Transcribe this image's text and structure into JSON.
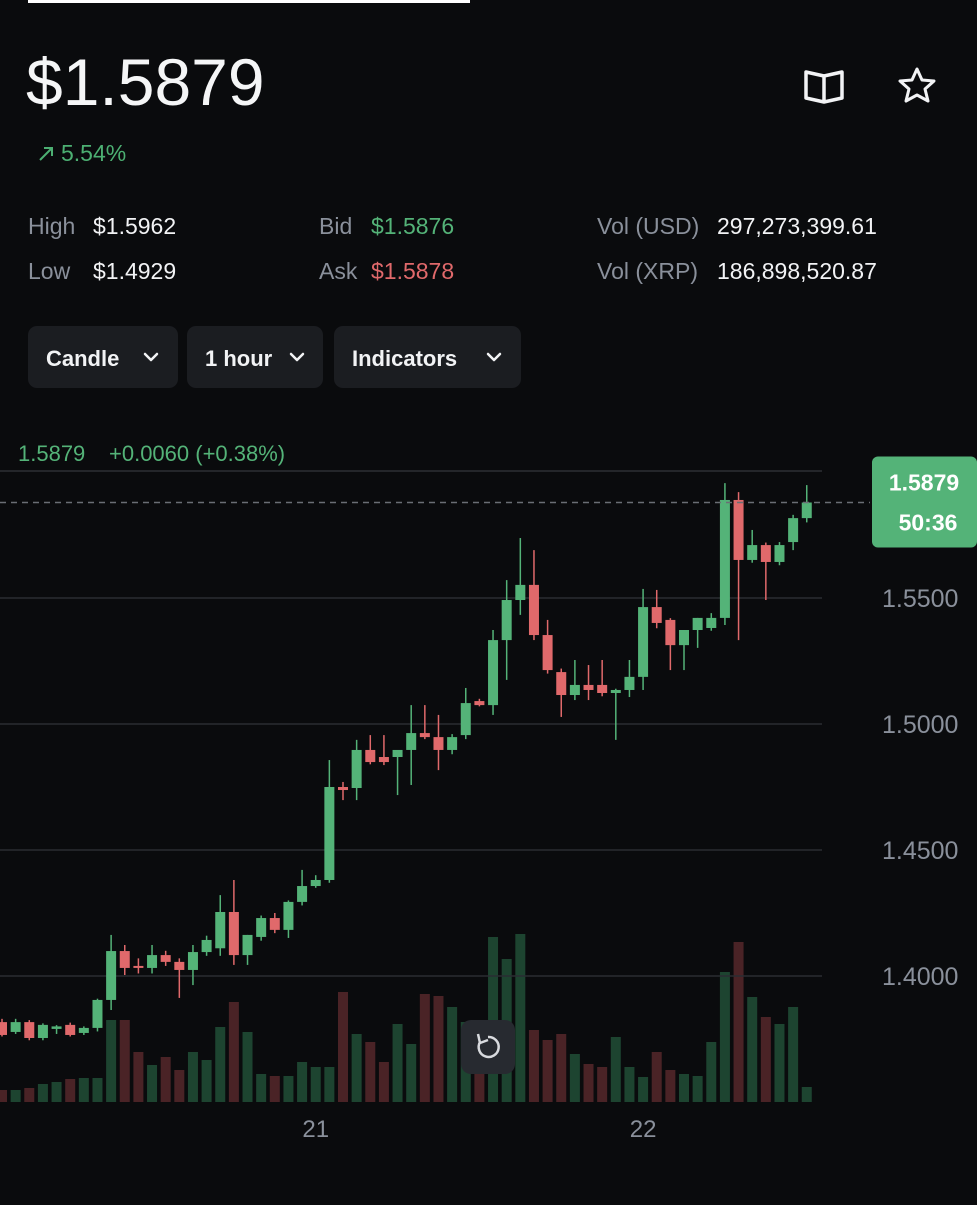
{
  "header": {
    "price": "$1.5879",
    "change": "5.54%"
  },
  "stats": [
    [
      {
        "label": "High",
        "value": "$1.5962"
      },
      {
        "label": "Bid",
        "value": "$1.5876"
      },
      {
        "label": "Vol (USD)",
        "value": "297,273,399.61"
      }
    ],
    [
      {
        "label": "Low",
        "value": "$1.4929"
      },
      {
        "label": "Ask",
        "value": "$1.5878"
      },
      {
        "label": "Vol (XRP)",
        "value": "186,898,520.87"
      }
    ]
  ],
  "controls": [
    "Candle",
    "1 hour",
    "Indicators"
  ],
  "chart_data": {
    "type": "candlestick",
    "last_price": 1.5879,
    "change_label": "+0.0060 (+0.38%)",
    "countdown": "50:36",
    "up_color": "#54b378",
    "down_color": "#e0696b",
    "volume_up_color": "#1d4430",
    "volume_down_color": "#4a2326",
    "ylim": [
      1.35,
      1.6
    ],
    "yticks": [
      {
        "value": 1.4,
        "label": "1.4000"
      },
      {
        "value": 1.45,
        "label": "1.4500"
      },
      {
        "value": 1.5,
        "label": "1.5000"
      },
      {
        "value": 1.55,
        "label": "1.5500"
      }
    ],
    "grid": true,
    "volume_ylim": [
      0,
      630
    ],
    "categories": [
      null,
      null,
      null,
      null,
      null,
      null,
      null,
      null,
      null,
      null,
      null,
      null,
      null,
      null,
      null,
      null,
      null,
      null,
      null,
      null,
      null,
      null,
      null,
      "21",
      null,
      null,
      null,
      null,
      null,
      null,
      null,
      null,
      null,
      null,
      null,
      null,
      null,
      null,
      null,
      null,
      null,
      null,
      null,
      null,
      null,
      null,
      null,
      "22",
      null,
      null,
      null,
      null,
      null,
      null,
      null,
      null,
      null,
      null,
      null,
      null
    ],
    "open": [
      1.3817,
      1.3778,
      1.3817,
      1.3754,
      1.379,
      1.3806,
      1.3774,
      1.3794,
      1.3905,
      1.4099,
      1.404,
      1.4032,
      1.4083,
      1.4056,
      1.4024,
      1.4095,
      1.411,
      1.4254,
      1.4083,
      1.4155,
      1.423,
      1.4183,
      1.4294,
      1.4357,
      1.4381,
      1.475,
      1.4746,
      1.4897,
      1.4869,
      1.4869,
      1.4897,
      1.4964,
      1.4948,
      1.4897,
      1.4956,
      1.5091,
      1.5075,
      1.5333,
      1.5492,
      1.5552,
      1.5353,
      1.5206,
      1.5115,
      1.5155,
      1.5155,
      1.5123,
      1.5135,
      1.5187,
      1.5464,
      1.5413,
      1.5313,
      1.5373,
      1.5381,
      1.5421,
      1.5889,
      1.5651,
      1.571,
      1.5643,
      1.5722,
      1.5817
    ],
    "high": [
      1.383,
      1.383,
      1.3825,
      1.3812,
      1.3805,
      1.3815,
      1.38,
      1.391,
      1.4163,
      1.4123,
      1.407,
      1.4123,
      1.41,
      1.407,
      1.4123,
      1.416,
      1.4321,
      1.4381,
      1.4163,
      1.424,
      1.425,
      1.43,
      1.4421,
      1.44,
      1.4857,
      1.477,
      1.4937,
      1.4956,
      1.4956,
      1.489,
      1.5075,
      1.5075,
      1.5036,
      1.496,
      1.5143,
      1.51,
      1.5373,
      1.5571,
      1.5738,
      1.569,
      1.5413,
      1.522,
      1.5254,
      1.5234,
      1.5254,
      1.514,
      1.5254,
      1.5536,
      1.5532,
      1.542,
      1.5373,
      1.5421,
      1.544,
      1.5956,
      1.592,
      1.577,
      1.572,
      1.5722,
      1.583,
      1.5948
    ],
    "low": [
      1.376,
      1.377,
      1.3745,
      1.3745,
      1.377,
      1.376,
      1.3766,
      1.378,
      1.3865,
      1.4004,
      1.401,
      1.401,
      1.404,
      1.3913,
      1.3964,
      1.408,
      1.408,
      1.4044,
      1.4044,
      1.414,
      1.417,
      1.4151,
      1.428,
      1.435,
      1.437,
      1.4698,
      1.4698,
      1.484,
      1.4837,
      1.4718,
      1.4758,
      1.494,
      1.4817,
      1.488,
      1.494,
      1.507,
      1.5036,
      1.5175,
      1.5433,
      1.5333,
      1.52,
      1.5028,
      1.5095,
      1.5095,
      1.511,
      1.4937,
      1.5107,
      1.5135,
      1.538,
      1.5214,
      1.5214,
      1.5302,
      1.537,
      1.5393,
      1.5333,
      1.564,
      1.5492,
      1.563,
      1.569,
      1.58
    ],
    "close": [
      1.3766,
      1.3817,
      1.3754,
      1.3806,
      1.38,
      1.3766,
      1.3794,
      1.3905,
      1.4099,
      1.4032,
      1.4032,
      1.4083,
      1.4056,
      1.4024,
      1.4095,
      1.4143,
      1.4254,
      1.4083,
      1.4163,
      1.423,
      1.4183,
      1.4294,
      1.4357,
      1.4381,
      1.475,
      1.4738,
      1.4897,
      1.4849,
      1.4849,
      1.4897,
      1.4964,
      1.4948,
      1.4897,
      1.4948,
      1.5083,
      1.5075,
      1.5333,
      1.5492,
      1.5552,
      1.5353,
      1.5214,
      1.5115,
      1.5155,
      1.5135,
      1.5123,
      1.5135,
      1.5187,
      1.5464,
      1.5401,
      1.5313,
      1.5373,
      1.5421,
      1.5421,
      1.5889,
      1.5651,
      1.571,
      1.5643,
      1.571,
      1.5817,
      1.5879
    ],
    "volume": [
      12,
      12,
      14,
      18,
      20,
      23,
      24,
      24,
      82,
      82,
      50,
      37,
      45,
      32,
      50,
      42,
      75,
      100,
      70,
      28,
      26,
      26,
      40,
      35,
      35,
      110,
      68,
      60,
      40,
      78,
      58,
      108,
      106,
      95,
      80,
      78,
      165,
      143,
      168,
      72,
      62,
      68,
      48,
      38,
      35,
      65,
      35,
      25,
      50,
      32,
      28,
      26,
      60,
      130,
      160,
      105,
      85,
      78,
      95,
      15
    ]
  }
}
